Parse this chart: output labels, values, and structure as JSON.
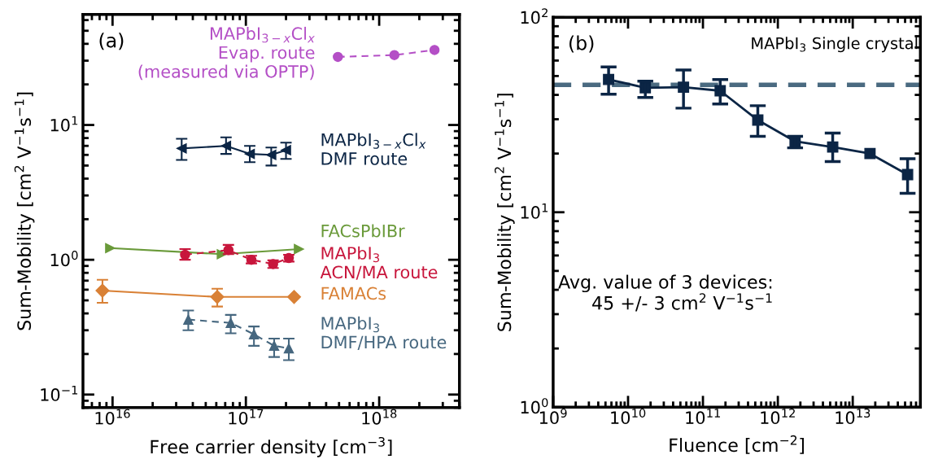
{
  "chart_data": [
    {
      "type": "line",
      "xlabel": "Free carrier density [cm$^{−3}$]",
      "ylabel": "Sum-Mobility [cm$^{2}$ V$^{−1}$s$^{−1}$]",
      "log": "xy",
      "xlim": [
        6000000000000000.0,
        4e+18
      ],
      "ylim": [
        0.08,
        66
      ],
      "xticks": [
        {
          "value": 1e+16,
          "label": "10$^{16}$"
        },
        {
          "value": 1e+17,
          "label": "10$^{17}$"
        },
        {
          "value": 1e+18,
          "label": "10$^{18}$"
        }
      ],
      "yticks": [
        {
          "value": 0.1,
          "label": "10$^{−1}$"
        },
        {
          "value": 1,
          "label": "10$^{0}$"
        },
        {
          "value": 10,
          "label": "10$^{1}$"
        }
      ],
      "grid": false,
      "legend": false,
      "annotations": [
        "(a)"
      ],
      "series": [
        {
          "name": "MAPbI$_{3−x}$Cl$_{x}$\nEvap. route\n(measured via OPTP)",
          "color": "#b44fc6",
          "marker": "circle",
          "line_style": "dashed",
          "x": [
            4.9e+17,
            1.3e+18,
            2.6e+18
          ],
          "values": [
            32,
            33,
            36
          ]
        },
        {
          "name": "MAPbI$_{3−x}$Cl$_{x}$\nDMF route",
          "color": "#0b2545",
          "marker": "triangle_left",
          "line_style": "solid",
          "x": [
            3.3e+16,
            7.1e+16,
            1.07e+17,
            1.55e+17,
            2e+17
          ],
          "values": [
            6.7,
            7.0,
            6.1,
            6.0,
            6.5
          ],
          "errors": [
            [
              5.5,
              7.9
            ],
            [
              6.1,
              8.1
            ],
            [
              5.3,
              7.0
            ],
            [
              5.0,
              6.8
            ],
            [
              5.6,
              7.4
            ]
          ]
        },
        {
          "name": "FACsPbIBr",
          "color": "#6a9a3a",
          "marker": "triangle_right",
          "line_style": "solid",
          "x": [
            9600000000000000.0,
            6.6e+16,
            2.5e+17
          ],
          "values": [
            1.22,
            1.1,
            1.2
          ]
        },
        {
          "name": "MAPbI$_{3}$\nACN/MA route",
          "color": "#c8163c",
          "marker": "circle",
          "line_style": "dashed",
          "x": [
            3.5e+16,
            7.4e+16,
            1.1e+17,
            1.6e+17,
            2.1e+17
          ],
          "values": [
            1.09,
            1.18,
            1.0,
            0.93,
            1.03
          ],
          "errors": [
            [
              1.0,
              1.2
            ],
            [
              1.1,
              1.29
            ],
            [
              0.94,
              1.07
            ],
            [
              0.87,
              0.99
            ],
            [
              0.97,
              1.09
            ]
          ]
        },
        {
          "name": "FAMACs",
          "color": "#d98136",
          "marker": "diamond",
          "line_style": "solid",
          "x": [
            8400000000000000.0,
            6.1e+16,
            2.3e+17
          ],
          "values": [
            0.59,
            0.53,
            0.53
          ],
          "errors": [
            [
              0.48,
              0.71
            ],
            [
              0.45,
              0.61
            ],
            null
          ]
        },
        {
          "name": "MAPbI$_{3}$\nDMF/HPA route",
          "color": "#46677f",
          "marker": "triangle",
          "line_style": "dashed",
          "x": [
            3.7e+16,
            7.7e+16,
            1.15e+17,
            1.63e+17,
            2.1e+17
          ],
          "values": [
            0.36,
            0.34,
            0.28,
            0.23,
            0.22
          ],
          "errors": [
            [
              0.3,
              0.42
            ],
            [
              0.285,
              0.39
            ],
            [
              0.23,
              0.32
            ],
            [
              0.19,
              0.26
            ],
            [
              0.18,
              0.26
            ]
          ]
        }
      ]
    },
    {
      "type": "line",
      "xlabel": "Fluence [cm$^{−2}$]",
      "ylabel": "Sum-Mobility [cm$^{2}$ V$^{−1}$s$^{−1}$]",
      "log": "xy",
      "xlim": [
        1000000000.0,
        80000000000000.0
      ],
      "ylim": [
        1,
        100
      ],
      "xticks": [
        {
          "value": 1000000000.0,
          "label": "10$^{9}$"
        },
        {
          "value": 10000000000.0,
          "label": "10$^{10}$"
        },
        {
          "value": 100000000000.0,
          "label": "10$^{11}$"
        },
        {
          "value": 1000000000000.0,
          "label": "10$^{12}$"
        },
        {
          "value": 10000000000000.0,
          "label": "10$^{13}$"
        }
      ],
      "yticks": [
        {
          "value": 1,
          "label": "10$^{0}$"
        },
        {
          "value": 10,
          "label": "10$^{1}$"
        },
        {
          "value": 100,
          "label": "10$^{2}$"
        }
      ],
      "grid": false,
      "legend": false,
      "annotations": [
        "(b)",
        "MAPbI$_{3}$ Single crystal",
        "Avg. value of 3 devices:\n45 +/- 3 cm$^{2}$ V$^{−1}$s$^{−1}$"
      ],
      "ref_lines": [
        {
          "axis": "y",
          "value": 45,
          "color": "#4a6a80",
          "line_style": "dashed"
        }
      ],
      "series": [
        {
          "color": "#0b2545",
          "marker": "square",
          "line_style": "solid",
          "x": [
            5500000000.0,
            17000000000.0,
            55000000000.0,
            170000000000.0,
            540000000000.0,
            1700000000000.0,
            5400000000000.0,
            17000000000000.0,
            54000000000000.0
          ],
          "values": [
            48,
            43.5,
            43.8,
            42,
            29.7,
            23.1,
            21.6,
            20.0,
            15.6
          ],
          "errors": [
            [
              40.3,
              55.7
            ],
            [
              38.8,
              47
            ],
            [
              34.2,
              53.7
            ],
            [
              35.9,
              47.9
            ],
            [
              24.5,
              35.2
            ],
            [
              21.4,
              24.5
            ],
            [
              18.2,
              25.5
            ],
            null,
            [
              12.5,
              18.8
            ]
          ]
        }
      ]
    }
  ]
}
